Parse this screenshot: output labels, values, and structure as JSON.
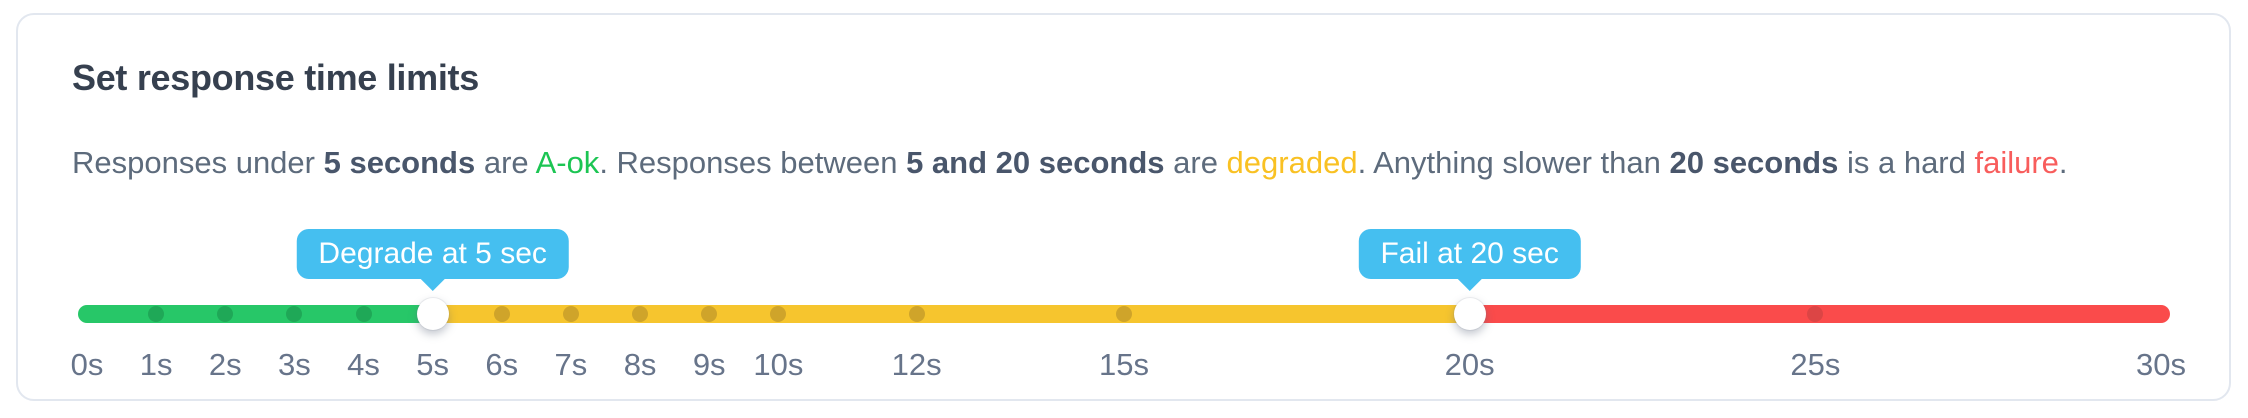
{
  "card": {
    "title": "Set response time limits",
    "description_segments": [
      {
        "text": "Responses under ",
        "style": "normal"
      },
      {
        "text": "5 seconds",
        "style": "bold"
      },
      {
        "text": " are ",
        "style": "normal"
      },
      {
        "text": "A-ok",
        "style": "ok"
      },
      {
        "text": ". Responses between ",
        "style": "normal"
      },
      {
        "text": "5 and 20 seconds",
        "style": "bold"
      },
      {
        "text": " are ",
        "style": "normal"
      },
      {
        "text": "degraded",
        "style": "warn"
      },
      {
        "text": ". Anything slower than ",
        "style": "normal"
      },
      {
        "text": "20 seconds",
        "style": "bold"
      },
      {
        "text": " is a hard ",
        "style": "normal"
      },
      {
        "text": "failure",
        "style": "fail"
      },
      {
        "text": ".",
        "style": "normal"
      }
    ]
  },
  "slider": {
    "min": 0,
    "max": 30,
    "unit": "s",
    "handles": [
      {
        "id": "degrade",
        "value": 5,
        "tooltip": "Degrade at 5 sec"
      },
      {
        "id": "fail",
        "value": 20,
        "tooltip": "Fail at 20 sec"
      }
    ],
    "zones": [
      {
        "name": "ok",
        "from": 0,
        "to": 5,
        "color": "#27C768",
        "dot_color": "#1FA857"
      },
      {
        "name": "degraded",
        "from": 5,
        "to": 20,
        "color": "#F6C52E",
        "dot_color": "#CFA42A"
      },
      {
        "name": "failure",
        "from": 20,
        "to": 30,
        "color": "#FA4B4B",
        "dot_color": "#DC4545"
      }
    ],
    "dot_values": [
      1,
      2,
      3,
      4,
      6,
      7,
      8,
      9,
      10,
      12,
      15,
      25
    ],
    "tick_labels": [
      {
        "value": 0,
        "label": "0s"
      },
      {
        "value": 1,
        "label": "1s"
      },
      {
        "value": 2,
        "label": "2s"
      },
      {
        "value": 3,
        "label": "3s"
      },
      {
        "value": 4,
        "label": "4s"
      },
      {
        "value": 5,
        "label": "5s"
      },
      {
        "value": 6,
        "label": "6s"
      },
      {
        "value": 7,
        "label": "7s"
      },
      {
        "value": 8,
        "label": "8s"
      },
      {
        "value": 9,
        "label": "9s"
      },
      {
        "value": 10,
        "label": "10s"
      },
      {
        "value": 12,
        "label": "12s"
      },
      {
        "value": 15,
        "label": "15s"
      },
      {
        "value": 20,
        "label": "20s"
      },
      {
        "value": 25,
        "label": "25s"
      },
      {
        "value": 30,
        "label": "30s"
      }
    ]
  },
  "colors": {
    "ok_text": "#1CC553",
    "warn_text": "#F9C123",
    "fail_text": "#F85D5C",
    "tooltip_bg": "#45BFF0",
    "title_text": "#36404F",
    "body_text": "#5D6B7C",
    "body_bold_text": "#49566B",
    "tick_text": "#67748A",
    "card_border": "#E2E7EF"
  }
}
